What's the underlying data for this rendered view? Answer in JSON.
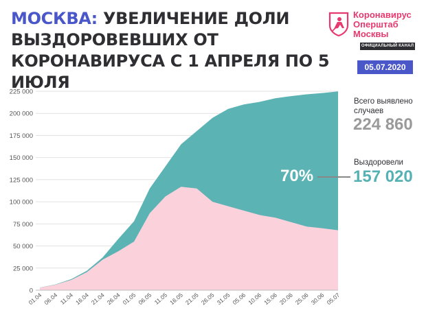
{
  "header": {
    "title_city": "МОСКВА:",
    "title_rest": "УВЕЛИЧЕНИЕ ДОЛИ ВЫЗДОРОВЕВШИХ ОТ КОРОНАВИРУСА С 1 АПРЕЛЯ ПО 5 ИЮЛЯ",
    "accent_color": "#4a57c9"
  },
  "brand": {
    "line1": "Коронавирус",
    "line2": "Оперштаб",
    "line3": "Москвы",
    "badge": "ОФИЦИАЛЬНЫЙ КАНАЛ",
    "logo_icon": "moscow-coat-of-arms-icon",
    "color": "#e8396f"
  },
  "date": "05.07.2020",
  "summary": {
    "total_label_1": "Всего выявлено",
    "total_label_2": "случаев",
    "total_value": "224 860",
    "recovered_label": "Выздоровели",
    "recovered_value": "157 020",
    "recovered_share": "70%"
  },
  "chart_data": {
    "type": "area",
    "x_ticks": [
      "01.04",
      "06.04",
      "11.04",
      "16.04",
      "21.04",
      "26.04",
      "01.05",
      "06.05",
      "11.05",
      "16.05",
      "21.05",
      "26.05",
      "31.05",
      "05.06",
      "10.06",
      "15.06",
      "20.06",
      "25.06",
      "30.06",
      "05.07"
    ],
    "y_ticks": [
      "0",
      "25 000",
      "50 000",
      "75 000",
      "100 000",
      "125 000",
      "150 000",
      "175 000",
      "200 000",
      "225 000"
    ],
    "ylim": [
      0,
      225000
    ],
    "grid": true,
    "colors": {
      "recovered": "#5cb3b4",
      "active": "#fbd1dc"
    },
    "series": [
      {
        "key": "total",
        "values": [
          3000,
          6500,
          12500,
          22000,
          37000,
          58000,
          78000,
          115000,
          140000,
          165000,
          180000,
          195000,
          205000,
          210000,
          213000,
          217000,
          219500,
          221500,
          223000,
          224860
        ]
      },
      {
        "key": "active",
        "values": [
          2900,
          6200,
          11600,
          20500,
          34500,
          44000,
          55000,
          87000,
          106000,
          117000,
          115000,
          100000,
          95000,
          90000,
          85000,
          82000,
          77000,
          72000,
          70000,
          67840
        ]
      }
    ]
  }
}
